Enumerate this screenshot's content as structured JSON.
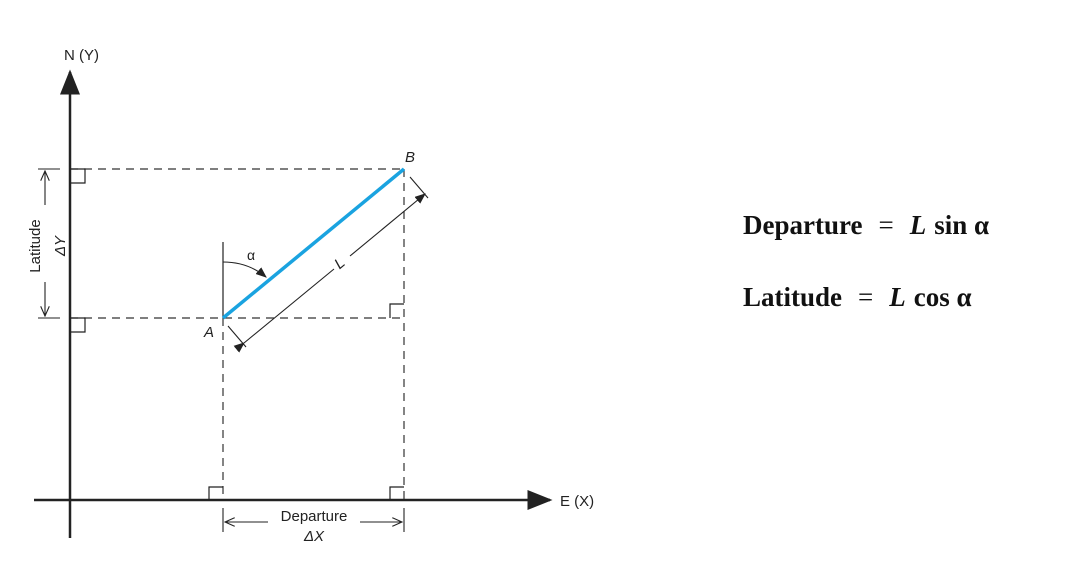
{
  "diagram": {
    "axis_y_label": "N (Y)",
    "axis_x_label": "E (X)",
    "point_a": "A",
    "point_b": "B",
    "length_label": "L",
    "angle_label": "α",
    "latitude_label": "Latitude",
    "delta_y_label": "ΔY",
    "departure_label": "Departure",
    "delta_x_label": "ΔX",
    "line_color": "#1aa3e0"
  },
  "formulas": [
    {
      "name": "Departure",
      "equals": "=",
      "length": "L",
      "func": "sin α"
    },
    {
      "name": "Latitude",
      "equals": "=",
      "length": "L",
      "func": "cos α"
    }
  ]
}
